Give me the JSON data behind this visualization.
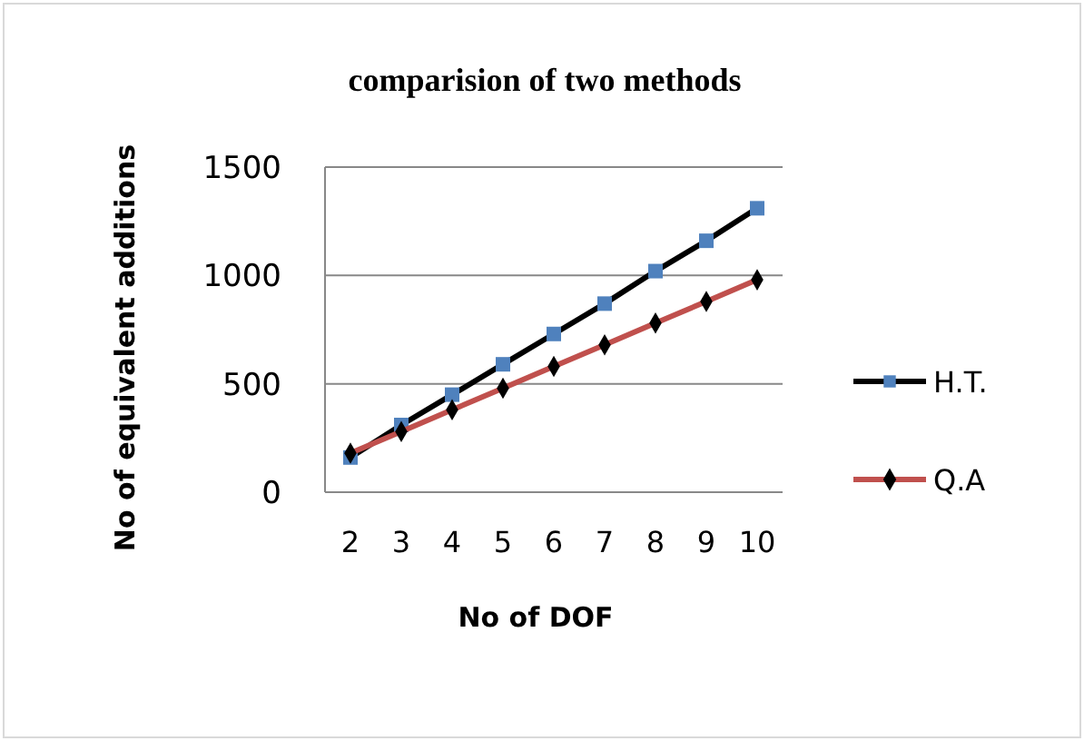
{
  "chart_data": {
    "type": "line",
    "title": "comparision of two methods",
    "xlabel": "No of DOF",
    "ylabel": "No of equivalent additions",
    "categories": [
      "2",
      "3",
      "4",
      "5",
      "6",
      "7",
      "8",
      "9",
      "10"
    ],
    "series": [
      {
        "name": "H.T.",
        "color": "#000000",
        "colors": [
          "#4f81bd",
          "#4f81bd",
          "#4f81bd",
          "#4f81bd",
          "#4f81bd",
          "#4f81bd",
          "#4f81bd",
          "#4f81bd",
          "#4f81bd"
        ],
        "marker": "square",
        "values": [
          160,
          310,
          450,
          590,
          730,
          870,
          1020,
          1160,
          1310
        ]
      },
      {
        "name": "Q.A",
        "color": "#c0504d",
        "colors": [
          "#000000",
          "#000000",
          "#000000",
          "#000000",
          "#000000",
          "#000000",
          "#000000",
          "#000000",
          "#000000"
        ],
        "marker": "diamond",
        "values": [
          180,
          280,
          380,
          480,
          580,
          680,
          780,
          880,
          980
        ]
      }
    ],
    "ylim": [
      0,
      1500
    ],
    "yticks": [
      0,
      500,
      1000,
      1500
    ],
    "grid": "y",
    "legend": "right",
    "line_style": "solid"
  }
}
